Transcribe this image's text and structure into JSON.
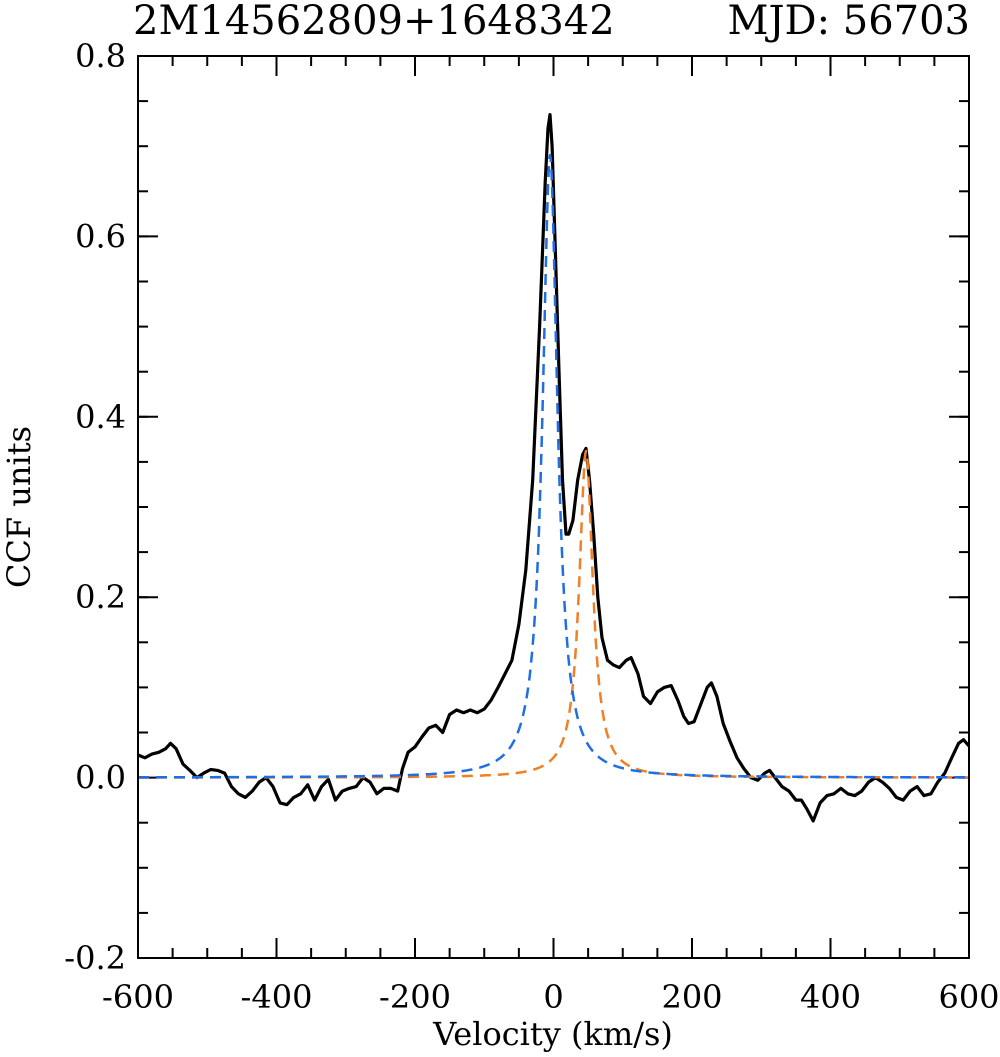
{
  "chart_data": {
    "type": "line",
    "title": "2M14562809+1648342",
    "subtitle": "MJD: 56703",
    "xlabel": "Velocity (km/s)",
    "ylabel": "CCF units",
    "xlim": [
      -600,
      600
    ],
    "ylim": [
      -0.2,
      0.8
    ],
    "xticks": [
      -600,
      -400,
      -200,
      0,
      200,
      400,
      600
    ],
    "xtick_labels": [
      "-600",
      "-400",
      "-200",
      "0",
      "200",
      "400",
      "600"
    ],
    "yticks": [
      -0.2,
      0.0,
      0.2,
      0.4,
      0.6,
      0.8
    ],
    "ytick_labels": [
      "-0.2",
      "0.0",
      "0.2",
      "0.4",
      "0.6",
      "0.8"
    ],
    "x_minor_step": 50,
    "y_minor_step": 0.05,
    "grid": false,
    "series": [
      {
        "color": "#000000",
        "style": "solid",
        "points": [
          [
            -600,
            0.025
          ],
          [
            -590,
            0.022
          ],
          [
            -580,
            0.026
          ],
          [
            -570,
            0.028
          ],
          [
            -560,
            0.032
          ],
          [
            -553,
            0.038
          ],
          [
            -545,
            0.032
          ],
          [
            -535,
            0.015
          ],
          [
            -525,
            0.008
          ],
          [
            -515,
            0.0
          ],
          [
            -505,
            0.005
          ],
          [
            -495,
            0.009
          ],
          [
            -485,
            0.008
          ],
          [
            -475,
            0.005
          ],
          [
            -465,
            -0.01
          ],
          [
            -455,
            -0.018
          ],
          [
            -445,
            -0.022
          ],
          [
            -435,
            -0.015
          ],
          [
            -425,
            -0.005
          ],
          [
            -415,
            0.0
          ],
          [
            -405,
            -0.01
          ],
          [
            -395,
            -0.028
          ],
          [
            -385,
            -0.03
          ],
          [
            -375,
            -0.022
          ],
          [
            -365,
            -0.018
          ],
          [
            -355,
            -0.008
          ],
          [
            -345,
            -0.025
          ],
          [
            -335,
            -0.01
          ],
          [
            -325,
            -0.002
          ],
          [
            -315,
            -0.025
          ],
          [
            -305,
            -0.015
          ],
          [
            -295,
            -0.012
          ],
          [
            -285,
            -0.01
          ],
          [
            -275,
            0.0
          ],
          [
            -265,
            -0.005
          ],
          [
            -255,
            -0.018
          ],
          [
            -245,
            -0.012
          ],
          [
            -235,
            -0.012
          ],
          [
            -225,
            -0.015
          ],
          [
            -218,
            0.01
          ],
          [
            -210,
            0.028
          ],
          [
            -200,
            0.034
          ],
          [
            -190,
            0.045
          ],
          [
            -180,
            0.055
          ],
          [
            -170,
            0.058
          ],
          [
            -160,
            0.05
          ],
          [
            -150,
            0.07
          ],
          [
            -140,
            0.075
          ],
          [
            -130,
            0.072
          ],
          [
            -120,
            0.075
          ],
          [
            -110,
            0.072
          ],
          [
            -100,
            0.076
          ],
          [
            -90,
            0.086
          ],
          [
            -80,
            0.1
          ],
          [
            -70,
            0.115
          ],
          [
            -60,
            0.13
          ],
          [
            -50,
            0.17
          ],
          [
            -40,
            0.23
          ],
          [
            -30,
            0.33
          ],
          [
            -20,
            0.5
          ],
          [
            -12,
            0.66
          ],
          [
            -8,
            0.72
          ],
          [
            -5,
            0.735
          ],
          [
            -2,
            0.7
          ],
          [
            2,
            0.6
          ],
          [
            8,
            0.45
          ],
          [
            13,
            0.33
          ],
          [
            18,
            0.27
          ],
          [
            22,
            0.27
          ],
          [
            28,
            0.285
          ],
          [
            35,
            0.33
          ],
          [
            42,
            0.358
          ],
          [
            47,
            0.365
          ],
          [
            52,
            0.33
          ],
          [
            58,
            0.27
          ],
          [
            64,
            0.2
          ],
          [
            70,
            0.155
          ],
          [
            78,
            0.13
          ],
          [
            86,
            0.125
          ],
          [
            95,
            0.122
          ],
          [
            105,
            0.13
          ],
          [
            112,
            0.133
          ],
          [
            122,
            0.115
          ],
          [
            130,
            0.09
          ],
          [
            140,
            0.082
          ],
          [
            150,
            0.095
          ],
          [
            160,
            0.1
          ],
          [
            170,
            0.102
          ],
          [
            180,
            0.085
          ],
          [
            188,
            0.068
          ],
          [
            195,
            0.06
          ],
          [
            203,
            0.062
          ],
          [
            212,
            0.08
          ],
          [
            222,
            0.1
          ],
          [
            228,
            0.105
          ],
          [
            236,
            0.09
          ],
          [
            245,
            0.06
          ],
          [
            255,
            0.04
          ],
          [
            265,
            0.022
          ],
          [
            275,
            0.01
          ],
          [
            285,
            0.0
          ],
          [
            295,
            -0.003
          ],
          [
            305,
            0.005
          ],
          [
            312,
            0.008
          ],
          [
            320,
            0.0
          ],
          [
            330,
            -0.01
          ],
          [
            340,
            -0.015
          ],
          [
            350,
            -0.025
          ],
          [
            358,
            -0.025
          ],
          [
            366,
            -0.035
          ],
          [
            375,
            -0.048
          ],
          [
            385,
            -0.028
          ],
          [
            395,
            -0.02
          ],
          [
            405,
            -0.018
          ],
          [
            415,
            -0.012
          ],
          [
            425,
            -0.018
          ],
          [
            435,
            -0.02
          ],
          [
            445,
            -0.015
          ],
          [
            455,
            -0.005
          ],
          [
            465,
            0.0
          ],
          [
            475,
            -0.005
          ],
          [
            485,
            -0.012
          ],
          [
            495,
            -0.022
          ],
          [
            505,
            -0.025
          ],
          [
            515,
            -0.015
          ],
          [
            525,
            -0.01
          ],
          [
            535,
            -0.02
          ],
          [
            545,
            -0.018
          ],
          [
            555,
            -0.005
          ],
          [
            565,
            0.005
          ],
          [
            575,
            0.022
          ],
          [
            585,
            0.038
          ],
          [
            592,
            0.042
          ],
          [
            600,
            0.035
          ]
        ]
      },
      {
        "color": "#1f6fe0",
        "style": "dashed",
        "model": {
          "kind": "lorentzian",
          "center": -5,
          "amplitude": 0.69,
          "half_width": 13
        },
        "x_range": [
          -600,
          600
        ]
      },
      {
        "color": "#f07f27",
        "style": "dashed",
        "model": {
          "kind": "lorentzian",
          "center": 47,
          "amplitude": 0.362,
          "half_width": 12
        },
        "x_range": [
          -600,
          600
        ]
      }
    ]
  }
}
